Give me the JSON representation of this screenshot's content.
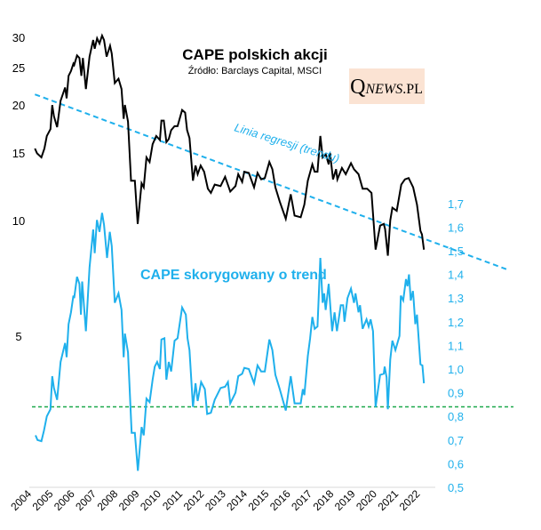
{
  "chart_data": {
    "type": "line",
    "title": "CAPE polskich akcji",
    "subtitle": "Źródło: Barclays Capital, MSCI",
    "logo": "QNEWS.PL",
    "colors": {
      "cape": "#000000",
      "adjusted": "#1fb0ec",
      "trend": "#1fb0ec",
      "threshold": "#1aa84a",
      "logo_bg": "#fbe3d3"
    },
    "x_ticks": [
      "2004",
      "2005",
      "2006",
      "2007",
      "2008",
      "2009",
      "2010",
      "2011",
      "2012",
      "2013",
      "2014",
      "2015",
      "2016",
      "2017",
      "2018",
      "2019",
      "2020",
      "2021",
      "2022"
    ],
    "left_axis": {
      "scale": "log",
      "ticks": [
        "5",
        "10",
        "15",
        "20",
        "25",
        "30"
      ],
      "range": [
        3.5,
        31
      ]
    },
    "right_axis": {
      "scale": "linear",
      "ticks": [
        "0,5",
        "0,6",
        "0,7",
        "0,8",
        "0,9",
        "1,0",
        "1,1",
        "1,2",
        "1,3",
        "1,4",
        "1,5",
        "1,6",
        "1,7"
      ],
      "range": [
        0.5,
        1.7
      ]
    },
    "grid": false,
    "annotations": {
      "trend_label": "Linia regresji (trendu)",
      "adjusted_label": "CAPE skorygowany o trend"
    },
    "trend_line": {
      "x": [
        2004.26,
        2022.68
      ],
      "y": [
        21.3,
        8.8
      ],
      "axis": "left"
    },
    "threshold_line": {
      "y": 0.84,
      "axis": "right"
    },
    "series": [
      {
        "key": "cape",
        "axis": "left",
        "x": [
          2004.26,
          2004.36,
          2004.56,
          2004.7,
          2004.81,
          2004.98,
          2005.06,
          2005.14,
          2005.29,
          2005.45,
          2005.66,
          2005.73,
          2005.82,
          2005.93,
          2006.04,
          2006.08,
          2006.21,
          2006.32,
          2006.41,
          2006.48,
          2006.62,
          2006.79,
          2006.96,
          2007.03,
          2007.14,
          2007.25,
          2007.37,
          2007.46,
          2007.58,
          2007.74,
          2007.82,
          2007.96,
          2008.13,
          2008.27,
          2008.37,
          2008.43,
          2008.57,
          2008.71,
          2008.89,
          2009.02,
          2009.2,
          2009.3,
          2009.43,
          2009.57,
          2009.71,
          2009.88,
          2010.05,
          2010.12,
          2010.23,
          2010.35,
          2010.46,
          2010.57,
          2010.73,
          2010.87,
          2011.08,
          2011.22,
          2011.31,
          2011.42,
          2011.58,
          2011.7,
          2011.8,
          2011.94,
          2012.1,
          2012.27,
          2012.41,
          2012.59,
          2012.86,
          2013.07,
          2013.31,
          2013.55,
          2013.68,
          2013.86,
          2013.96,
          2014.17,
          2014.41,
          2014.57,
          2014.74,
          2014.91,
          2015.12,
          2015.26,
          2015.4,
          2015.6,
          2015.88,
          2016.11,
          2016.29,
          2016.57,
          2016.74,
          2016.9,
          2017.11,
          2017.22,
          2017.35,
          2017.48,
          2017.59,
          2017.73,
          2017.87,
          2017.93,
          2018.07,
          2018.21,
          2018.27,
          2018.48,
          2018.66,
          2018.9,
          2019.04,
          2019.25,
          2019.44,
          2019.65,
          2019.85,
          2020.04,
          2020.25,
          2020.42,
          2020.48,
          2020.61,
          2020.72,
          2020.82,
          2021.02,
          2021.23,
          2021.4,
          2021.57,
          2021.78,
          2021.96,
          2022.12,
          2022.19,
          2022.28
        ],
        "y": [
          15.4,
          14.96,
          14.6,
          15.4,
          16.6,
          17.3,
          19.97,
          18.7,
          17.5,
          20.5,
          22.2,
          20.8,
          23.8,
          24.5,
          25.6,
          25.4,
          26.9,
          26.5,
          23.8,
          26.5,
          22.0,
          26.7,
          29.5,
          28.0,
          29.8,
          28.9,
          30.3,
          29.5,
          26.7,
          28.5,
          27.2,
          22.8,
          23.4,
          22.0,
          18.4,
          20.0,
          18.1,
          12.7,
          12.7,
          9.8,
          12.5,
          12.2,
          14.6,
          14.2,
          15.8,
          16.6,
          16.2,
          18.2,
          18.2,
          16.0,
          16.3,
          17.2,
          17.6,
          17.6,
          19.4,
          19.1,
          17.2,
          16.4,
          12.7,
          13.9,
          13.2,
          13.9,
          13.4,
          12.1,
          11.8,
          12.4,
          12.3,
          13.0,
          11.9,
          12.3,
          13.2,
          12.6,
          13.4,
          13.3,
          12.2,
          13.3,
          12.8,
          12.9,
          14.2,
          13.6,
          12.2,
          11.2,
          10.1,
          11.7,
          10.3,
          10.2,
          11.0,
          12.7,
          14.0,
          13.4,
          13.4,
          16.6,
          14.6,
          14.9,
          14.0,
          15.0,
          12.8,
          13.6,
          12.8,
          13.7,
          13.2,
          14.1,
          13.6,
          13.2,
          12.1,
          12.1,
          11.8,
          8.4,
          9.7,
          9.8,
          9.5,
          8.1,
          10.0,
          10.8,
          10.6,
          12.4,
          12.8,
          12.9,
          12.2,
          11.0,
          9.4,
          9.2,
          8.4
        ]
      },
      {
        "key": "adjusted",
        "axis": "right",
        "x": [
          2004.29,
          2004.38,
          2004.56,
          2004.68,
          2004.81,
          2004.98,
          2005.06,
          2005.14,
          2005.29,
          2005.45,
          2005.66,
          2005.73,
          2005.82,
          2005.93,
          2006.04,
          2006.08,
          2006.21,
          2006.32,
          2006.39,
          2006.45,
          2006.62,
          2006.79,
          2006.96,
          2007.03,
          2007.13,
          2007.25,
          2007.37,
          2007.46,
          2007.6,
          2007.73,
          2007.82,
          2007.96,
          2008.13,
          2008.27,
          2008.37,
          2008.43,
          2008.57,
          2008.74,
          2008.89,
          2009.03,
          2009.2,
          2009.3,
          2009.43,
          2009.57,
          2009.71,
          2009.81,
          2009.92,
          2010.05,
          2010.12,
          2010.26,
          2010.35,
          2010.46,
          2010.57,
          2010.73,
          2010.87,
          2011.08,
          2011.25,
          2011.33,
          2011.42,
          2011.58,
          2011.7,
          2011.8,
          2011.96,
          2012.13,
          2012.24,
          2012.41,
          2012.59,
          2012.86,
          2013.07,
          2013.2,
          2013.31,
          2013.55,
          2013.68,
          2013.86,
          2013.96,
          2014.17,
          2014.41,
          2014.57,
          2014.74,
          2014.91,
          2015.12,
          2015.26,
          2015.4,
          2015.6,
          2015.88,
          2016.11,
          2016.29,
          2016.57,
          2016.67,
          2016.74,
          2016.9,
          2017.01,
          2017.11,
          2017.22,
          2017.35,
          2017.48,
          2017.59,
          2017.66,
          2017.73,
          2017.87,
          2018.03,
          2018.14,
          2018.25,
          2018.43,
          2018.54,
          2018.6,
          2018.74,
          2018.9,
          2019.04,
          2019.11,
          2019.25,
          2019.32,
          2019.44,
          2019.62,
          2019.72,
          2019.81,
          2019.92,
          2020.04,
          2020.25,
          2020.42,
          2020.46,
          2020.55,
          2020.61,
          2020.72,
          2020.82,
          2020.96,
          2021.15,
          2021.21,
          2021.32,
          2021.45,
          2021.52,
          2021.59,
          2021.67,
          2021.77,
          2021.8,
          2021.88,
          2021.96,
          2022.12,
          2022.21,
          2022.28
        ],
        "y": [
          0.72,
          0.7,
          0.695,
          0.74,
          0.8,
          0.83,
          0.97,
          0.92,
          0.87,
          1.03,
          1.11,
          1.05,
          1.19,
          1.24,
          1.31,
          1.3,
          1.39,
          1.36,
          1.23,
          1.37,
          1.16,
          1.43,
          1.59,
          1.49,
          1.63,
          1.58,
          1.66,
          1.61,
          1.47,
          1.58,
          1.52,
          1.28,
          1.32,
          1.25,
          1.05,
          1.15,
          1.07,
          0.73,
          0.73,
          0.57,
          0.755,
          0.72,
          0.875,
          0.86,
          0.955,
          1.01,
          1.03,
          1.0,
          1.125,
          1.13,
          0.955,
          1.03,
          0.99,
          1.12,
          1.13,
          1.26,
          1.23,
          1.13,
          1.08,
          0.84,
          0.94,
          0.865,
          0.945,
          0.915,
          0.81,
          0.815,
          0.87,
          0.92,
          0.925,
          0.945,
          0.855,
          0.9,
          0.97,
          0.98,
          1.005,
          1.0,
          0.94,
          1.015,
          0.99,
          0.99,
          1.125,
          1.08,
          0.975,
          0.915,
          0.825,
          0.97,
          0.855,
          0.855,
          0.915,
          0.89,
          1.055,
          1.13,
          1.22,
          1.17,
          1.18,
          1.47,
          1.28,
          1.32,
          1.25,
          1.36,
          1.16,
          1.24,
          1.16,
          1.27,
          1.27,
          1.2,
          1.3,
          1.34,
          1.28,
          1.32,
          1.24,
          1.27,
          1.17,
          1.21,
          1.18,
          1.21,
          1.16,
          0.84,
          0.975,
          0.98,
          1.01,
          0.965,
          0.83,
          1.04,
          1.12,
          1.08,
          1.14,
          1.31,
          1.29,
          1.38,
          1.35,
          1.4,
          1.29,
          1.33,
          1.3,
          1.19,
          1.23,
          1.02,
          1.015,
          0.94
        ]
      }
    ]
  }
}
